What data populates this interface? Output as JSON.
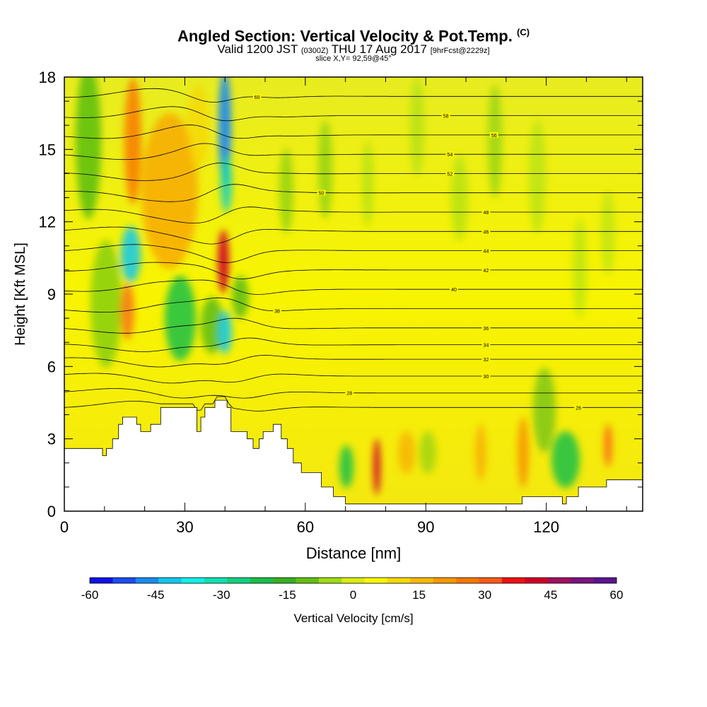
{
  "title": {
    "main": "Angled Section: Vertical Velocity & Pot.Temp.",
    "corner": "(C)",
    "valid_prefix": "Valid 1200 JST",
    "valid_utc": "(0300Z)",
    "valid_date": "THU 17 Aug 2017",
    "valid_forecast": "[9hrFcst@2229z]",
    "slice": "slice X,Y= 92,59@45°"
  },
  "chart_data": {
    "type": "heatmap",
    "xlabel": "Distance [nm]",
    "ylabel": "Height [Kft MSL]",
    "xlim": [
      0,
      144
    ],
    "ylim": [
      0,
      18
    ],
    "x_ticks": [
      "0",
      "30",
      "60",
      "90",
      "120"
    ],
    "x_tick_values": [
      0,
      30,
      60,
      90,
      120
    ],
    "y_ticks": [
      "0",
      "3",
      "6",
      "9",
      "12",
      "15",
      "18"
    ],
    "y_tick_values": [
      0,
      3,
      6,
      9,
      12,
      15,
      18
    ],
    "colorbar": {
      "label": "Vertical Velocity [cm/s]",
      "range": [
        -60,
        60
      ],
      "ticks": [
        "-60",
        "-45",
        "-30",
        "-15",
        "0",
        "15",
        "30",
        "45",
        "60"
      ],
      "tick_values": [
        -60,
        -45,
        -30,
        -15,
        0,
        15,
        30,
        45,
        60
      ],
      "colors": [
        "#1010e8",
        "#1c4cf0",
        "#1a8af0",
        "#10c8f0",
        "#10f0e8",
        "#10e0b0",
        "#10d080",
        "#18c048",
        "#38b020",
        "#60c010",
        "#a0dc10",
        "#d8ec10",
        "#f8f800",
        "#f8d800",
        "#f8b800",
        "#f89800",
        "#f87800",
        "#f85818",
        "#f01010",
        "#d00028",
        "#a01060",
        "#7a1480",
        "#5a1490"
      ]
    },
    "terrain_kft": [
      [
        0,
        2.6
      ],
      [
        9.5,
        2.6
      ],
      [
        9.5,
        2.3
      ],
      [
        10.5,
        2.3
      ],
      [
        10.5,
        2.6
      ],
      [
        12,
        2.6
      ],
      [
        12,
        3.0
      ],
      [
        13.5,
        3.0
      ],
      [
        13.5,
        3.6
      ],
      [
        14.5,
        3.6
      ],
      [
        14.5,
        3.9
      ],
      [
        18,
        3.9
      ],
      [
        18,
        3.6
      ],
      [
        19,
        3.6
      ],
      [
        19,
        3.3
      ],
      [
        21.5,
        3.3
      ],
      [
        21.5,
        3.6
      ],
      [
        24,
        3.6
      ],
      [
        24,
        4.3
      ],
      [
        33,
        4.3
      ],
      [
        33,
        3.3
      ],
      [
        34,
        3.3
      ],
      [
        34,
        3.9
      ],
      [
        35,
        3.9
      ],
      [
        35,
        4.3
      ],
      [
        37.5,
        4.3
      ],
      [
        37.5,
        4.6
      ],
      [
        40.5,
        4.6
      ],
      [
        40.5,
        4.3
      ],
      [
        41.5,
        4.3
      ],
      [
        41.5,
        3.3
      ],
      [
        45.5,
        3.3
      ],
      [
        45.5,
        3.0
      ],
      [
        47,
        3.0
      ],
      [
        47,
        2.6
      ],
      [
        48.5,
        2.6
      ],
      [
        48.5,
        3.0
      ],
      [
        49.5,
        3.0
      ],
      [
        49.5,
        3.3
      ],
      [
        52,
        3.3
      ],
      [
        52,
        3.6
      ],
      [
        54,
        3.6
      ],
      [
        54,
        3.0
      ],
      [
        55.5,
        3.0
      ],
      [
        55.5,
        2.6
      ],
      [
        57,
        2.6
      ],
      [
        57,
        2.0
      ],
      [
        59,
        2.0
      ],
      [
        59,
        1.6
      ],
      [
        64,
        1.6
      ],
      [
        64,
        1.0
      ],
      [
        67,
        1.0
      ],
      [
        67,
        0.6
      ],
      [
        70,
        0.6
      ],
      [
        70,
        0.3
      ],
      [
        114,
        0.3
      ],
      [
        114,
        0.6
      ],
      [
        124,
        0.6
      ],
      [
        124,
        0.3
      ],
      [
        125,
        0.3
      ],
      [
        125,
        0.6
      ],
      [
        128,
        0.6
      ],
      [
        128,
        1.0
      ],
      [
        135,
        1.0
      ],
      [
        135,
        1.3
      ],
      [
        144,
        1.3
      ]
    ],
    "theta_contours_c": [
      {
        "label": "26",
        "y0": 4.3,
        "x": 128
      },
      {
        "label": "28",
        "y0": 4.9,
        "x": 71
      },
      {
        "label": "30",
        "y0": 5.6,
        "x": 105
      },
      {
        "label": "32",
        "y0": 6.3,
        "x": 105
      },
      {
        "label": "34",
        "y0": 6.9,
        "x": 105
      },
      {
        "label": "36",
        "y0": 7.6,
        "x": 105
      },
      {
        "label": "38",
        "y0": 8.4,
        "x": 53
      },
      {
        "label": "40",
        "y0": 9.2,
        "x": 97
      },
      {
        "label": "42",
        "y0": 10.0,
        "x": 105
      },
      {
        "label": "44",
        "y0": 10.8,
        "x": 105
      },
      {
        "label": "46",
        "y0": 11.6,
        "x": 105
      },
      {
        "label": "48",
        "y0": 12.4,
        "x": 105
      },
      {
        "label": "50",
        "y0": 13.2,
        "x": 64
      },
      {
        "label": "52",
        "y0": 14.0,
        "x": 96
      },
      {
        "label": "54",
        "y0": 14.8,
        "x": 96
      },
      {
        "label": "56",
        "y0": 15.6,
        "x": 107
      },
      {
        "label": "58",
        "y0": 16.4,
        "x": 95
      },
      {
        "label": "60",
        "y0": 17.2,
        "x": 48
      }
    ]
  }
}
